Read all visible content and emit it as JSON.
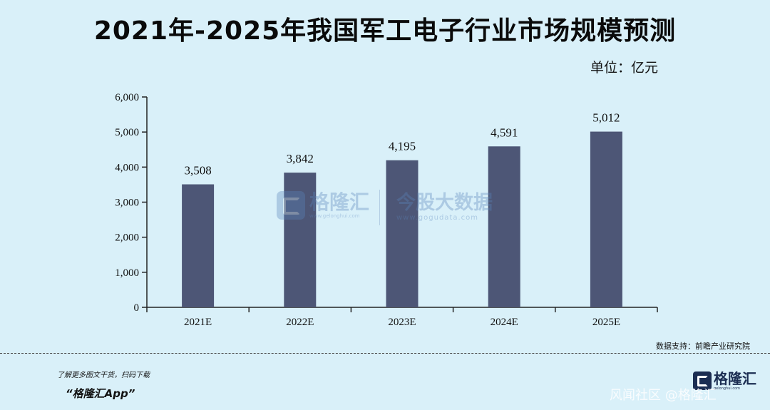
{
  "header": {
    "title": "2021年-2025年我国军工电子行业市场规模预测",
    "unit": "单位：亿元"
  },
  "chart_data": {
    "type": "bar",
    "title": "2021年-2025年我国军工电子行业市场规模预测",
    "categories": [
      "2021E",
      "2022E",
      "2023E",
      "2024E",
      "2025E"
    ],
    "values": [
      3508,
      3842,
      4195,
      4591,
      5012
    ],
    "value_labels": [
      "3,508",
      "3,842",
      "4,195",
      "4,591",
      "5,012"
    ],
    "yticks": [
      0,
      1000,
      2000,
      3000,
      4000,
      5000,
      6000
    ],
    "ytick_labels": [
      "0",
      "1,000",
      "2,000",
      "3,000",
      "4,000",
      "5,000",
      "6,000"
    ],
    "ylim": [
      0,
      6000
    ],
    "xlabel": "",
    "ylabel": "",
    "bar_color": "#4d5676",
    "grid": false,
    "legend": "none"
  },
  "source": "数据支持：前瞻产业研究院",
  "watermark": {
    "left_name": "格隆汇",
    "left_url": "www.gelonghui.com",
    "right_name": "今股大数据",
    "right_url": "www.gogudata.com"
  },
  "footer": {
    "promo": "了解更多图文干货，扫码下载",
    "app_name": "“格隆汇App”",
    "brand_name": "格隆汇",
    "brand_url": "gelonghui.com",
    "site_watermark": "风闻社区 @格隆汇"
  },
  "colors": {
    "background": "#d9f0f9",
    "bar": "#4d5676",
    "brand": "#1b2d52",
    "watermark": "#5b86bd"
  }
}
